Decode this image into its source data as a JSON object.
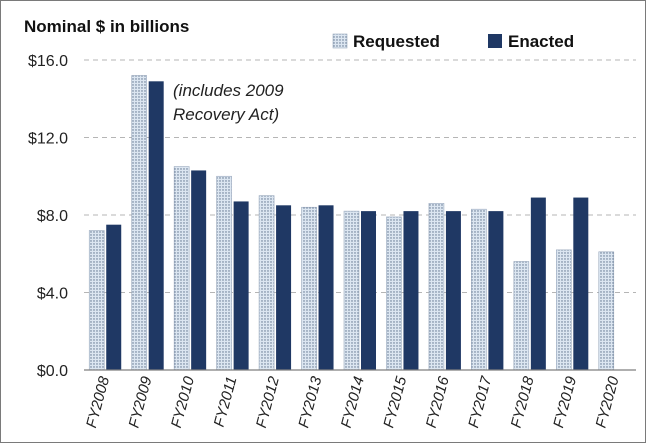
{
  "chart_data": {
    "type": "bar",
    "title": "Nominal $ in billions",
    "categories": [
      "FY2008",
      "FY2009",
      "FY2010",
      "FY2011",
      "FY2012",
      "FY2013",
      "FY2014",
      "FY2015",
      "FY2016",
      "FY2017",
      "FY2018",
      "FY2019",
      "FY2020"
    ],
    "series": [
      {
        "name": "Requested",
        "values": [
          7.2,
          15.2,
          10.5,
          10.0,
          9.0,
          8.4,
          8.2,
          7.9,
          8.6,
          8.3,
          5.6,
          6.2,
          6.1
        ]
      },
      {
        "name": "Enacted",
        "values": [
          7.5,
          14.9,
          10.3,
          8.7,
          8.5,
          8.5,
          8.2,
          8.2,
          8.2,
          8.2,
          8.9,
          8.9,
          null
        ]
      }
    ],
    "yticks": [
      "$0.0",
      "$4.0",
      "$8.0",
      "$12.0",
      "$16.0"
    ],
    "ylim": [
      0,
      16
    ],
    "grid": true,
    "legend_position": "top-right",
    "annotation": {
      "line1": "(includes 2009",
      "line2": "Recovery Act)"
    },
    "colors": {
      "enacted": "#1f3864",
      "requested": "#dce6f1",
      "requested_dots": "#5a6f8a"
    }
  }
}
